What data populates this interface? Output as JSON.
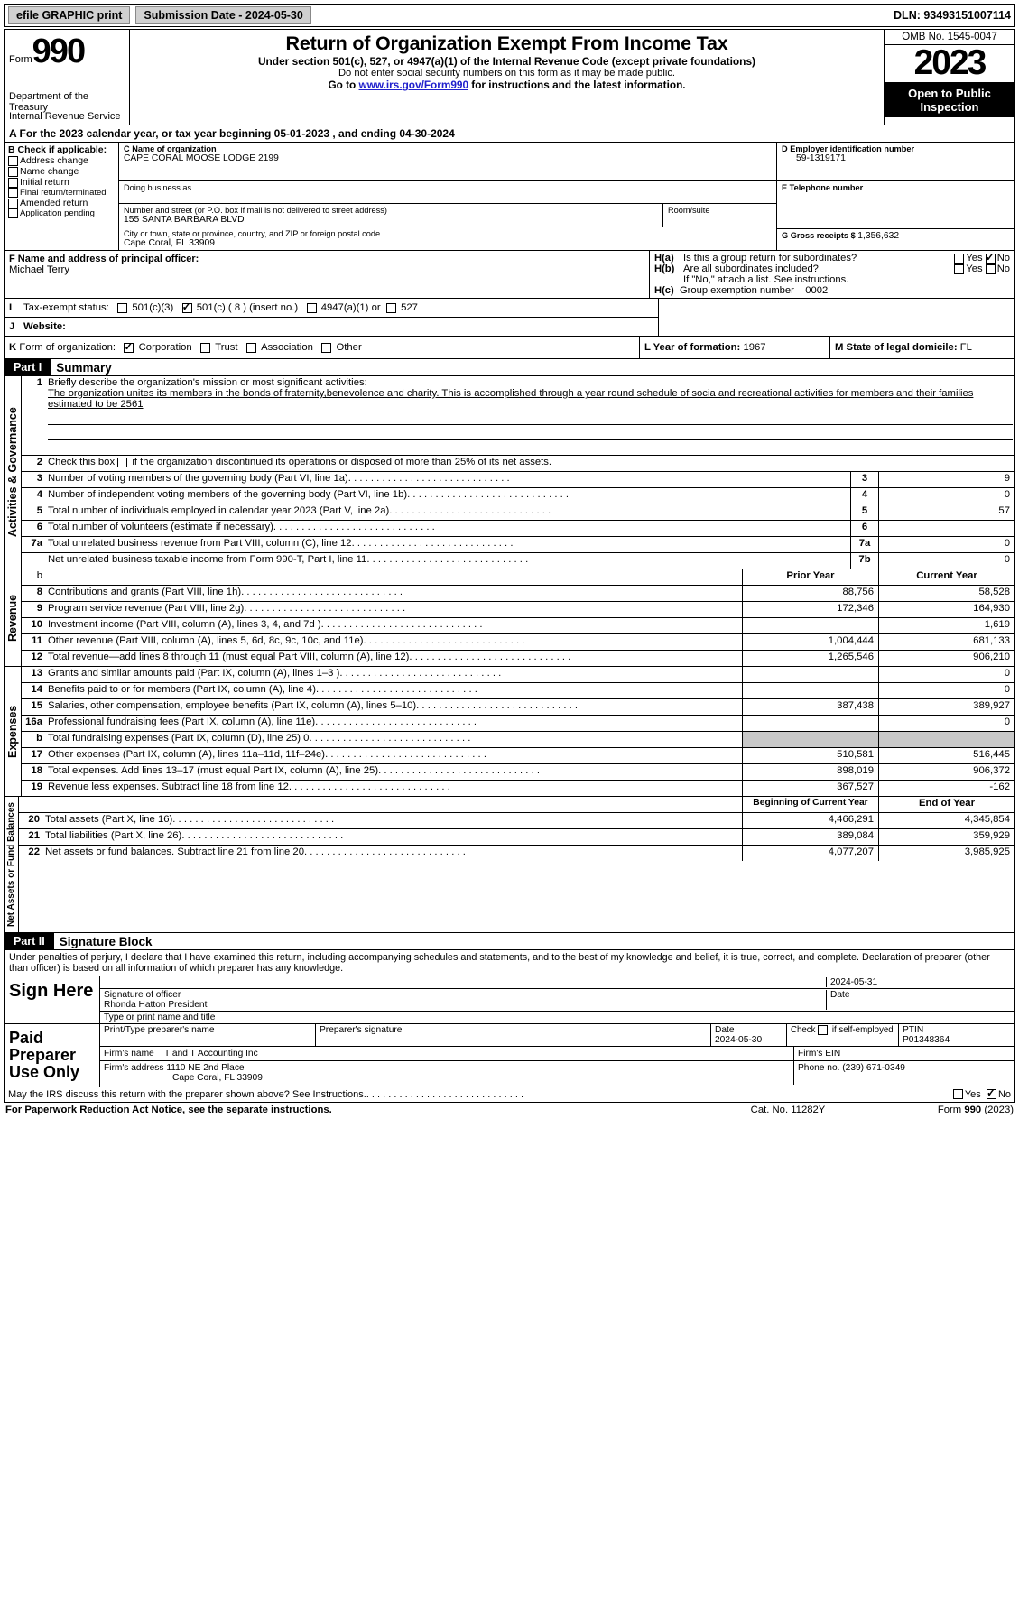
{
  "topbar": {
    "efile": "efile GRAPHIC print",
    "sub_label": "Submission Date - 2024-05-30",
    "dln": "DLN: 93493151007114"
  },
  "header": {
    "form_word": "Form",
    "form_num": "990",
    "dept": "Department of the Treasury",
    "irs": "Internal Revenue Service",
    "title": "Return of Organization Exempt From Income Tax",
    "sub1": "Under section 501(c), 527, or 4947(a)(1) of the Internal Revenue Code (except private foundations)",
    "sub2": "Do not enter social security numbers on this form as it may be made public.",
    "sub3_a": "Go to ",
    "sub3_link": "www.irs.gov/Form990",
    "sub3_b": " for instructions and the latest information.",
    "omb": "OMB No. 1545-0047",
    "year": "2023",
    "inspect": "Open to Public Inspection"
  },
  "rowA": "A   For the 2023 calendar year, or tax year beginning 05-01-2023    , and ending 04-30-2024",
  "boxB": {
    "hdr": "B Check if applicable:",
    "opts": [
      "Address change",
      "Name change",
      "Initial return",
      "Final return/terminated",
      "Amended return",
      "Application pending"
    ]
  },
  "boxC": {
    "name_lbl": "C Name of organization",
    "name": "CAPE CORAL MOOSE LODGE 2199",
    "dba_lbl": "Doing business as",
    "addr_lbl": "Number and street (or P.O. box if mail is not delivered to street address)",
    "room_lbl": "Room/suite",
    "addr": "155 SANTA BARBARA BLVD",
    "city_lbl": "City or town, state or province, country, and ZIP or foreign postal code",
    "city": "Cape Coral, FL  33909"
  },
  "boxD": {
    "lbl": "D Employer identification number",
    "val": "59-1319171"
  },
  "boxE": {
    "lbl": "E Telephone number"
  },
  "boxG": {
    "lbl": "G Gross receipts $ ",
    "val": "1,356,632"
  },
  "boxF": {
    "lbl": "F  Name and address of principal officer:",
    "name": "Michael Terry"
  },
  "boxH": {
    "a_q": "Is this a group return for subordinates?",
    "b_q": "Are all subordinates included?",
    "b_note": "If \"No,\" attach a list. See instructions.",
    "c_lbl": "Group exemption number",
    "c_val": "0002",
    "yes": "Yes",
    "no": "No"
  },
  "rowI": {
    "lbl": "Tax-exempt status:",
    "o1": "501(c)(3)",
    "o2": "501(c) ( 8 ) (insert no.)",
    "o3": "4947(a)(1) or",
    "o4": "527"
  },
  "rowJ": "Website:",
  "rowK": {
    "lbl": "Form of organization:",
    "corp": "Corporation",
    "trust": "Trust",
    "assoc": "Association",
    "other": "Other"
  },
  "rowL": {
    "lbl": "L Year of formation: ",
    "val": "1967"
  },
  "rowM": {
    "lbl": "M State of legal domicile: ",
    "val": "FL"
  },
  "part1": {
    "hdr": "Part I",
    "title": "Summary"
  },
  "mission": {
    "lbl": "Briefly describe the organization's mission or most significant activities:",
    "txt": "The organization unites its members in the bonds of fraternity,benevolence and charity. This is accomplished through a year round schedule of socia and recreational activities for members and their families estimated to be 2561"
  },
  "line2": "Check this box        if the organization discontinued its operations or disposed of more than 25% of its net assets.",
  "gov_rows": [
    {
      "n": "3",
      "d": "Number of voting members of the governing body (Part VI, line 1a)",
      "b": "3",
      "v": "9"
    },
    {
      "n": "4",
      "d": "Number of independent voting members of the governing body (Part VI, line 1b)",
      "b": "4",
      "v": "0"
    },
    {
      "n": "5",
      "d": "Total number of individuals employed in calendar year 2023 (Part V, line 2a)",
      "b": "5",
      "v": "57"
    },
    {
      "n": "6",
      "d": "Total number of volunteers (estimate if necessary)",
      "b": "6",
      "v": ""
    },
    {
      "n": "7a",
      "d": "Total unrelated business revenue from Part VIII, column (C), line 12",
      "b": "7a",
      "v": "0"
    },
    {
      "n": "",
      "d": "Net unrelated business taxable income from Form 990-T, Part I, line 11",
      "b": "7b",
      "v": "0"
    }
  ],
  "rev_hdr": {
    "py": "Prior Year",
    "cy": "Current Year"
  },
  "rev_rows": [
    {
      "n": "8",
      "d": "Contributions and grants (Part VIII, line 1h)",
      "py": "88,756",
      "cy": "58,528"
    },
    {
      "n": "9",
      "d": "Program service revenue (Part VIII, line 2g)",
      "py": "172,346",
      "cy": "164,930"
    },
    {
      "n": "10",
      "d": "Investment income (Part VIII, column (A), lines 3, 4, and 7d )",
      "py": "",
      "cy": "1,619"
    },
    {
      "n": "11",
      "d": "Other revenue (Part VIII, column (A), lines 5, 6d, 8c, 9c, 10c, and 11e)",
      "py": "1,004,444",
      "cy": "681,133"
    },
    {
      "n": "12",
      "d": "Total revenue—add lines 8 through 11 (must equal Part VIII, column (A), line 12)",
      "py": "1,265,546",
      "cy": "906,210"
    }
  ],
  "exp_rows": [
    {
      "n": "13",
      "d": "Grants and similar amounts paid (Part IX, column (A), lines 1–3 )",
      "py": "",
      "cy": "0"
    },
    {
      "n": "14",
      "d": "Benefits paid to or for members (Part IX, column (A), line 4)",
      "py": "",
      "cy": "0"
    },
    {
      "n": "15",
      "d": "Salaries, other compensation, employee benefits (Part IX, column (A), lines 5–10)",
      "py": "387,438",
      "cy": "389,927"
    },
    {
      "n": "16a",
      "d": "Professional fundraising fees (Part IX, column (A), line 11e)",
      "py": "",
      "cy": "0"
    },
    {
      "n": "b",
      "d": "Total fundraising expenses (Part IX, column (D), line 25) 0",
      "grey": true
    },
    {
      "n": "17",
      "d": "Other expenses (Part IX, column (A), lines 11a–11d, 11f–24e)",
      "py": "510,581",
      "cy": "516,445"
    },
    {
      "n": "18",
      "d": "Total expenses. Add lines 13–17 (must equal Part IX, column (A), line 25)",
      "py": "898,019",
      "cy": "906,372"
    },
    {
      "n": "19",
      "d": "Revenue less expenses. Subtract line 18 from line 12",
      "py": "367,527",
      "cy": "-162"
    }
  ],
  "net_hdr": {
    "py": "Beginning of Current Year",
    "cy": "End of Year"
  },
  "net_rows": [
    {
      "n": "20",
      "d": "Total assets (Part X, line 16)",
      "py": "4,466,291",
      "cy": "4,345,854"
    },
    {
      "n": "21",
      "d": "Total liabilities (Part X, line 26)",
      "py": "389,084",
      "cy": "359,929"
    },
    {
      "n": "22",
      "d": "Net assets or fund balances. Subtract line 21 from line 20",
      "py": "4,077,207",
      "cy": "3,985,925"
    }
  ],
  "vtabs": {
    "gov": "Activities & Governance",
    "rev": "Revenue",
    "exp": "Expenses",
    "net": "Net Assets or Fund Balances"
  },
  "part2": {
    "hdr": "Part II",
    "title": "Signature Block"
  },
  "perjury": "Under penalties of perjury, I declare that I have examined this return, including accompanying schedules and statements, and to the best of my knowledge and belief, it is true, correct, and complete. Declaration of preparer (other than officer) is based on all information of which preparer has any knowledge.",
  "sign": {
    "here": "Sign Here",
    "date": "2024-05-31",
    "sig_lbl": "Signature of officer",
    "name": "Rhonda Hatton  President",
    "type_lbl": "Type or print name and title",
    "date_lbl": "Date"
  },
  "paid": {
    "lbl": "Paid Preparer Use Only",
    "ptname_lbl": "Print/Type preparer's name",
    "psig_lbl": "Preparer's signature",
    "pdate_lbl": "Date",
    "pdate": "2024-05-30",
    "chk_lbl": "Check         if self-employed",
    "ptin_lbl": "PTIN",
    "ptin": "P01348364",
    "firm_name_lbl": "Firm's name",
    "firm_name": "T and T Accounting Inc",
    "firm_ein_lbl": "Firm's EIN",
    "firm_addr_lbl": "Firm's address",
    "firm_addr1": "1110 NE 2nd Place",
    "firm_addr2": "Cape Coral, FL  33909",
    "phone_lbl": "Phone no. ",
    "phone": "(239) 671-0349"
  },
  "discuss": "May the IRS discuss this return with the preparer shown above? See Instructions.",
  "footer": {
    "pra": "For Paperwork Reduction Act Notice, see the separate instructions.",
    "cat": "Cat. No. 11282Y",
    "form": "Form 990 (2023)"
  }
}
